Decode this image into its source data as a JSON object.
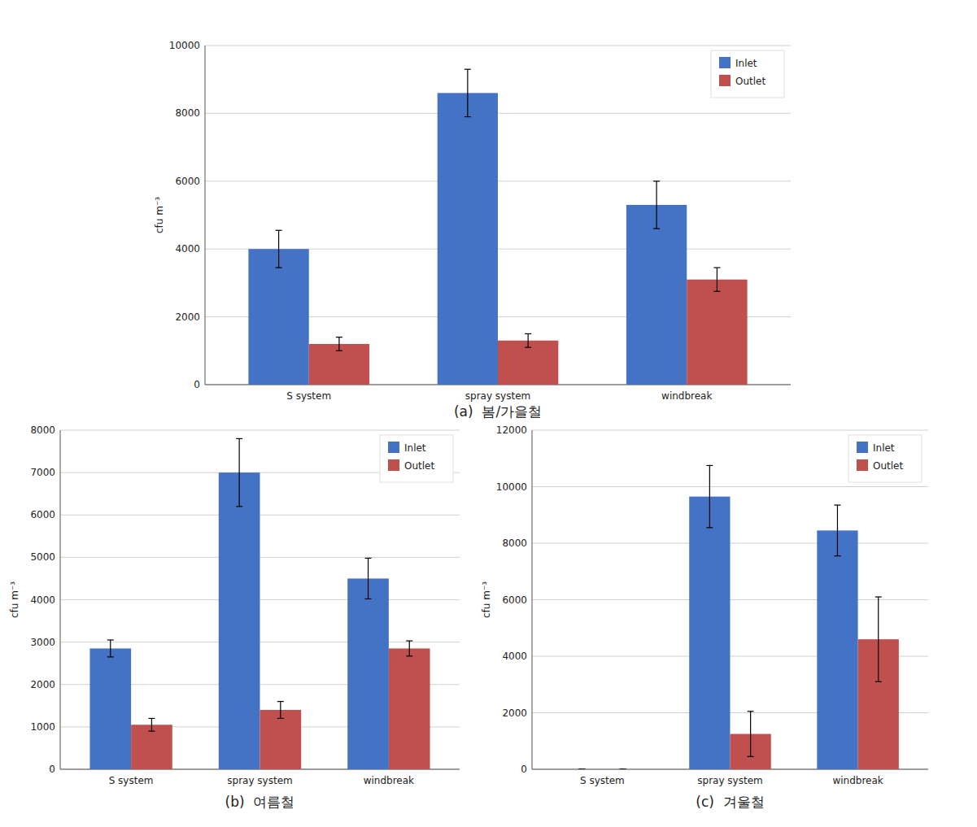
{
  "chart_data": [
    {
      "type": "bar",
      "title": "(a)  봄/가을철",
      "categories": [
        "S system",
        "spray system",
        "windbreak"
      ],
      "series": [
        {
          "name": "Inlet",
          "color": "#4472C4",
          "values": [
            4000,
            8600,
            5300
          ],
          "errors": [
            550,
            700,
            700
          ]
        },
        {
          "name": "Outlet",
          "color": "#C0504D",
          "values": [
            1200,
            1300,
            3100
          ],
          "errors": [
            200,
            200,
            350
          ]
        }
      ],
      "ylabel": "cfu m⁻³",
      "ylim": [
        0,
        10000
      ],
      "yticks": [
        0,
        2000,
        4000,
        6000,
        8000,
        10000
      ],
      "grid": true,
      "legend": "upper right"
    },
    {
      "type": "bar",
      "title": "(b)  여름철",
      "categories": [
        "S system",
        "spray system",
        "windbreak"
      ],
      "series": [
        {
          "name": "Inlet",
          "color": "#4472C4",
          "values": [
            2850,
            7000,
            4500
          ],
          "errors": [
            200,
            800,
            480
          ]
        },
        {
          "name": "Outlet",
          "color": "#C0504D",
          "values": [
            1050,
            1400,
            2850
          ],
          "errors": [
            150,
            200,
            180
          ]
        }
      ],
      "ylabel": "cfu m⁻³",
      "ylim": [
        0,
        8000
      ],
      "yticks": [
        0,
        1000,
        2000,
        3000,
        4000,
        5000,
        6000,
        7000,
        8000
      ],
      "grid": true,
      "legend": "upper right"
    },
    {
      "type": "bar",
      "title": "(c)  겨울철",
      "categories": [
        "S system",
        "spray system",
        "windbreak"
      ],
      "series": [
        {
          "name": "Inlet",
          "color": "#4472C4",
          "values": [
            0,
            9650,
            8450
          ],
          "errors": [
            0,
            1100,
            900
          ]
        },
        {
          "name": "Outlet",
          "color": "#C0504D",
          "values": [
            0,
            1250,
            4600
          ],
          "errors": [
            0,
            800,
            1500
          ]
        }
      ],
      "ylabel": "cfu m⁻³",
      "ylim": [
        0,
        12000
      ],
      "yticks": [
        0,
        2000,
        4000,
        6000,
        8000,
        10000,
        12000
      ],
      "grid": true,
      "legend": "upper right"
    }
  ]
}
